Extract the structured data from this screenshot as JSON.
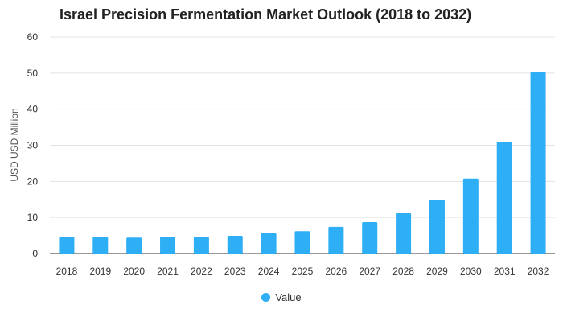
{
  "chart_data": {
    "type": "bar",
    "title": "Israel Precision Fermentation Market Outlook (2018 to 2032)",
    "ylabel": "USD USD Million",
    "xlabel": "",
    "ylim": [
      0,
      60
    ],
    "yticks": [
      0,
      10,
      20,
      30,
      40,
      50,
      60
    ],
    "grid": true,
    "legend_position": "bottom-center",
    "categories": [
      "2018",
      "2019",
      "2020",
      "2021",
      "2022",
      "2023",
      "2024",
      "2025",
      "2026",
      "2027",
      "2028",
      "2029",
      "2030",
      "2031",
      "2032"
    ],
    "series": [
      {
        "name": "Value",
        "color": "#2eaef5",
        "values": [
          4.6,
          4.6,
          4.4,
          4.6,
          4.6,
          4.9,
          5.6,
          6.2,
          7.4,
          8.7,
          11.2,
          14.8,
          20.8,
          31.0,
          50.3
        ]
      }
    ]
  }
}
